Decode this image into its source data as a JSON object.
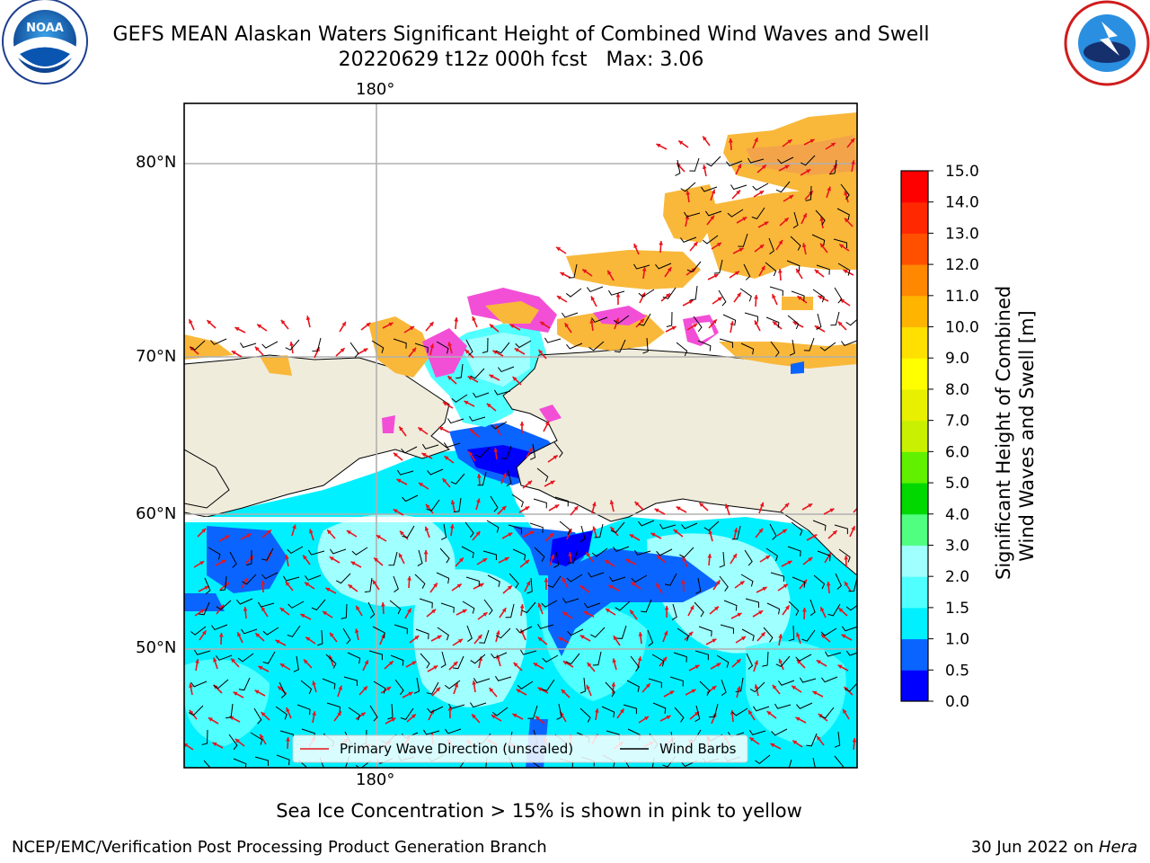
{
  "header": {
    "title_line1": "GEFS MEAN Alaskan Waters Significant Height of Combined Wind Waves and Swell",
    "title_line2": "20220629 t12z 000h fcst   Max: 3.06"
  },
  "logos": {
    "left": {
      "text": "NOAA",
      "ring_text": "NATIONAL OCEANIC AND ATMOSPHERIC ADMINISTRATION · U.S. DEPARTMENT OF COMMERCE"
    },
    "right": {
      "ring_text": "NATIONAL WEATHER SERVICE"
    }
  },
  "map": {
    "lon_label_top": "180°",
    "lon_label_bottom": "180°",
    "lat_labels": [
      "80°N",
      "70°N",
      "60°N",
      "50°N"
    ],
    "legend": {
      "wave_label": "Primary Wave Direction (unscaled)",
      "wind_label": "Wind Barbs",
      "wave_color": "#e8141c",
      "wind_color": "#000000"
    },
    "colors": {
      "land": "#efecdc",
      "ice": "#f9b83a",
      "ice_edge": "#f24fd6"
    }
  },
  "colorbar": {
    "title_line1": "Significant Height of Combined",
    "title_line2": "Wind Waves and Swell [m]",
    "ticks": [
      "15.0",
      "14.0",
      "13.0",
      "12.0",
      "11.0",
      "10.0",
      "9.0",
      "8.0",
      "7.0",
      "6.0",
      "5.0",
      "4.0",
      "3.0",
      "2.0",
      "1.5",
      "1.0",
      "0.5",
      "0.0"
    ],
    "colors_bottom_to_top": [
      "#0000ff",
      "#0a64ff",
      "#00f0ff",
      "#50ffff",
      "#a0ffff",
      "#50ff80",
      "#00d800",
      "#60f000",
      "#c8f000",
      "#e8f000",
      "#ffff00",
      "#ffe000",
      "#ffb400",
      "#ff8800",
      "#ff5000",
      "#ff2800",
      "#ff0000"
    ]
  },
  "footer": {
    "ice_note": "Sea Ice Concentration > 15% is shown in pink to yellow",
    "branch": "NCEP/EMC/Verification Post Processing Product Generation Branch",
    "date": "30 Jun 2022 on ",
    "machine": "Hera"
  }
}
